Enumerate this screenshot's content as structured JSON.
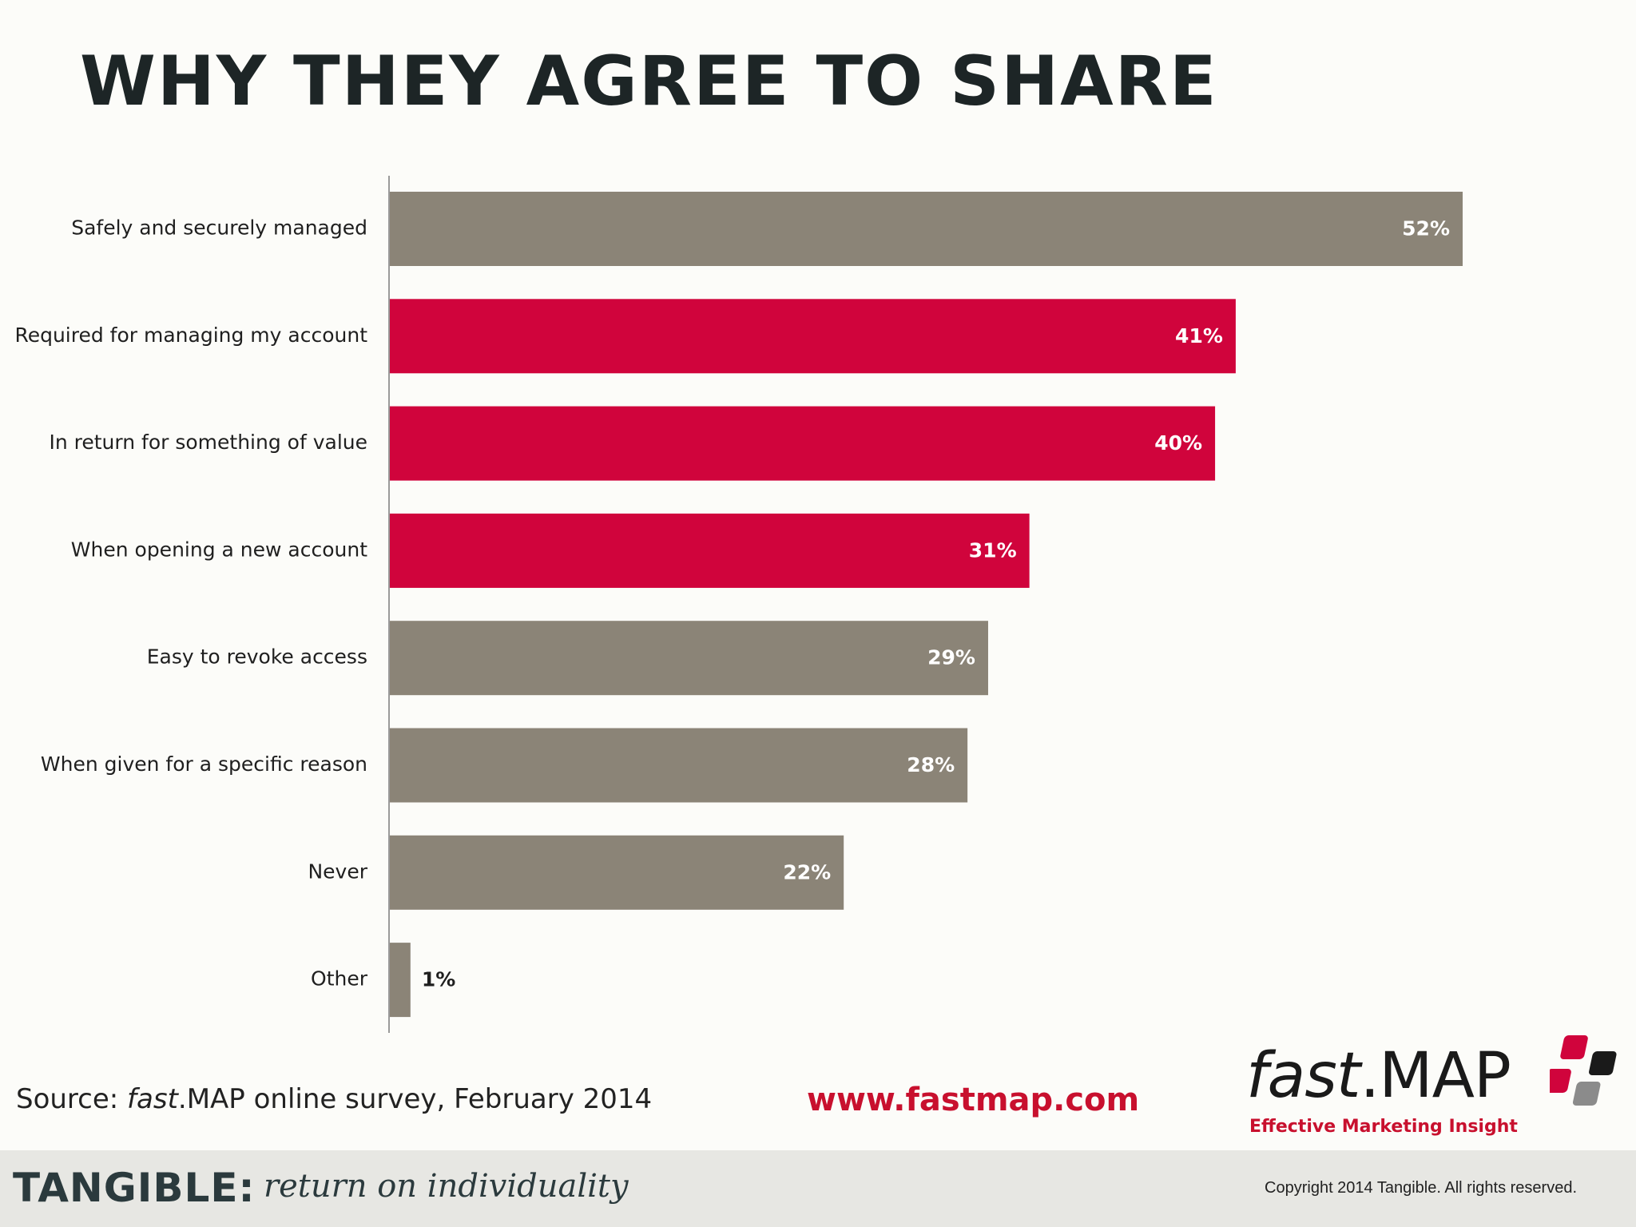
{
  "title": "WHY THEY AGREE TO SHARE",
  "chart_data": {
    "type": "bar",
    "orientation": "horizontal",
    "categories": [
      "Safely and securely managed",
      "Required for managing my account",
      "In return for something of value",
      "When opening a new account",
      "Easy to revoke access",
      "When given for a specific reason",
      "Never",
      "Other"
    ],
    "values": [
      52,
      41,
      40,
      31,
      29,
      28,
      22,
      1
    ],
    "value_labels": [
      "52%",
      "41%",
      "40%",
      "31%",
      "29%",
      "28%",
      "22%",
      "1%"
    ],
    "bar_colors": [
      "#8b8477",
      "#d0043c",
      "#d0043c",
      "#d0043c",
      "#8b8477",
      "#8b8477",
      "#8b8477",
      "#8b8477"
    ],
    "unit": "%",
    "grid": false,
    "legend": "none",
    "xlim": [
      0,
      60
    ]
  },
  "footer": {
    "source_prefix": "Source:  ",
    "source_italic": "fast",
    "source_rest": ".MAP online survey, February 2014",
    "website": "www.fastmap.com",
    "logo_fast": "fast",
    "logo_map": ".MAP",
    "logo_tagline": "Effective Marketing Insight",
    "brand_name": "TANGIBLE:",
    "brand_tagline": "return on individuality",
    "copyright": "Copyright 2014 Tangible. All rights reserved."
  },
  "colors": {
    "accent": "#d0043c",
    "neutral_bar": "#8b8477",
    "title": "#1d2526",
    "footer_band": "#e7e7e3"
  }
}
